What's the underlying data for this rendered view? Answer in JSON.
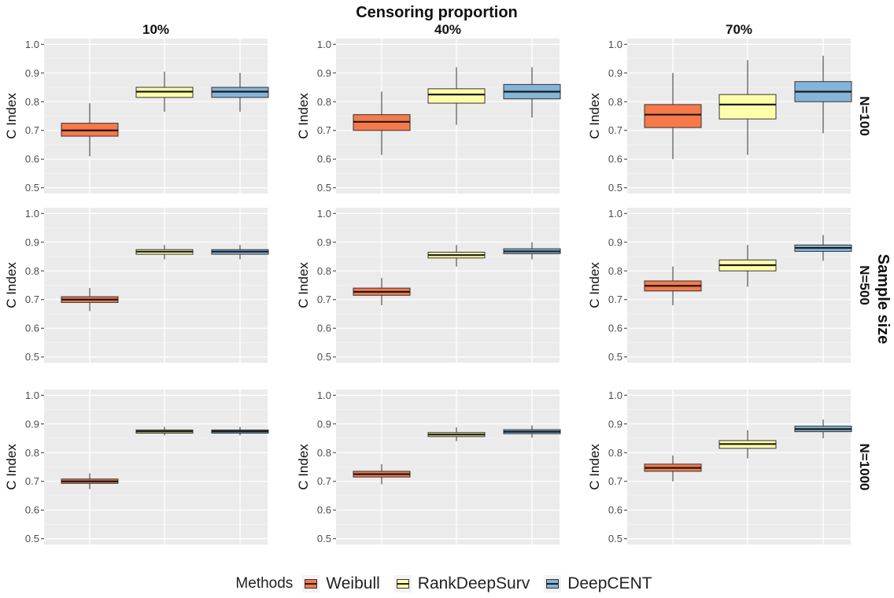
{
  "chart_data": {
    "type": "boxplot",
    "title": "Censoring proportion",
    "strip_right_title": "Sample size",
    "ylabel": "C Index",
    "ylim": [
      0.48,
      1.02
    ],
    "yticks": [
      "0.5",
      "0.6",
      "0.7",
      "0.8",
      "0.9",
      "1.0"
    ],
    "columns": [
      "10%",
      "40%",
      "70%"
    ],
    "rows": [
      "N=100",
      "N=500",
      "N=1000"
    ],
    "methods": [
      "Weibull",
      "RankDeepSurv",
      "DeepCENT"
    ],
    "colors": {
      "Weibull": "#f7794a",
      "RankDeepSurv": "#ffffaa",
      "DeepCENT": "#84b5d8"
    },
    "legend_title": "Methods",
    "panels": [
      {
        "row": "N=100",
        "col": "10%",
        "boxes": [
          {
            "method": "Weibull",
            "min": 0.61,
            "q1": 0.68,
            "median": 0.7,
            "q3": 0.725,
            "max": 0.795
          },
          {
            "method": "RankDeepSurv",
            "min": 0.765,
            "q1": 0.815,
            "median": 0.835,
            "q3": 0.85,
            "max": 0.905
          },
          {
            "method": "DeepCENT",
            "min": 0.765,
            "q1": 0.815,
            "median": 0.835,
            "q3": 0.85,
            "max": 0.9
          }
        ]
      },
      {
        "row": "N=100",
        "col": "40%",
        "boxes": [
          {
            "method": "Weibull",
            "min": 0.615,
            "q1": 0.7,
            "median": 0.73,
            "q3": 0.755,
            "max": 0.835
          },
          {
            "method": "RankDeepSurv",
            "min": 0.72,
            "q1": 0.795,
            "median": 0.825,
            "q3": 0.845,
            "max": 0.92
          },
          {
            "method": "DeepCENT",
            "min": 0.745,
            "q1": 0.81,
            "median": 0.835,
            "q3": 0.86,
            "max": 0.92
          }
        ]
      },
      {
        "row": "N=100",
        "col": "70%",
        "boxes": [
          {
            "method": "Weibull",
            "min": 0.6,
            "q1": 0.71,
            "median": 0.755,
            "q3": 0.79,
            "max": 0.9
          },
          {
            "method": "RankDeepSurv",
            "min": 0.615,
            "q1": 0.74,
            "median": 0.79,
            "q3": 0.825,
            "max": 0.945
          },
          {
            "method": "DeepCENT",
            "min": 0.69,
            "q1": 0.8,
            "median": 0.835,
            "q3": 0.87,
            "max": 0.96
          }
        ]
      },
      {
        "row": "N=500",
        "col": "10%",
        "boxes": [
          {
            "method": "Weibull",
            "min": 0.66,
            "q1": 0.69,
            "median": 0.7,
            "q3": 0.71,
            "max": 0.74
          },
          {
            "method": "RankDeepSurv",
            "min": 0.84,
            "q1": 0.858,
            "median": 0.867,
            "q3": 0.874,
            "max": 0.89
          },
          {
            "method": "DeepCENT",
            "min": 0.84,
            "q1": 0.858,
            "median": 0.867,
            "q3": 0.874,
            "max": 0.89
          }
        ]
      },
      {
        "row": "N=500",
        "col": "40%",
        "boxes": [
          {
            "method": "Weibull",
            "min": 0.68,
            "q1": 0.715,
            "median": 0.727,
            "q3": 0.74,
            "max": 0.775
          },
          {
            "method": "RankDeepSurv",
            "min": 0.815,
            "q1": 0.845,
            "median": 0.855,
            "q3": 0.865,
            "max": 0.89
          },
          {
            "method": "DeepCENT",
            "min": 0.84,
            "q1": 0.86,
            "median": 0.868,
            "q3": 0.877,
            "max": 0.9
          }
        ]
      },
      {
        "row": "N=500",
        "col": "70%",
        "boxes": [
          {
            "method": "Weibull",
            "min": 0.68,
            "q1": 0.73,
            "median": 0.748,
            "q3": 0.765,
            "max": 0.815
          },
          {
            "method": "RankDeepSurv",
            "min": 0.745,
            "q1": 0.8,
            "median": 0.82,
            "q3": 0.838,
            "max": 0.89
          },
          {
            "method": "DeepCENT",
            "min": 0.835,
            "q1": 0.868,
            "median": 0.88,
            "q3": 0.89,
            "max": 0.925
          }
        ]
      },
      {
        "row": "N=1000",
        "col": "10%",
        "boxes": [
          {
            "method": "Weibull",
            "min": 0.673,
            "q1": 0.693,
            "median": 0.7,
            "q3": 0.708,
            "max": 0.728
          },
          {
            "method": "RankDeepSurv",
            "min": 0.86,
            "q1": 0.868,
            "median": 0.874,
            "q3": 0.879,
            "max": 0.89
          },
          {
            "method": "DeepCENT",
            "min": 0.86,
            "q1": 0.868,
            "median": 0.874,
            "q3": 0.879,
            "max": 0.89
          }
        ]
      },
      {
        "row": "N=1000",
        "col": "40%",
        "boxes": [
          {
            "method": "Weibull",
            "min": 0.69,
            "q1": 0.715,
            "median": 0.725,
            "q3": 0.735,
            "max": 0.76
          },
          {
            "method": "RankDeepSurv",
            "min": 0.84,
            "q1": 0.856,
            "median": 0.863,
            "q3": 0.87,
            "max": 0.888
          },
          {
            "method": "DeepCENT",
            "min": 0.852,
            "q1": 0.866,
            "median": 0.873,
            "q3": 0.88,
            "max": 0.895
          }
        ]
      },
      {
        "row": "N=1000",
        "col": "70%",
        "boxes": [
          {
            "method": "Weibull",
            "min": 0.7,
            "q1": 0.735,
            "median": 0.747,
            "q3": 0.76,
            "max": 0.79
          },
          {
            "method": "RankDeepSurv",
            "min": 0.78,
            "q1": 0.815,
            "median": 0.83,
            "q3": 0.842,
            "max": 0.878
          },
          {
            "method": "DeepCENT",
            "min": 0.85,
            "q1": 0.873,
            "median": 0.882,
            "q3": 0.892,
            "max": 0.915
          }
        ]
      }
    ]
  }
}
